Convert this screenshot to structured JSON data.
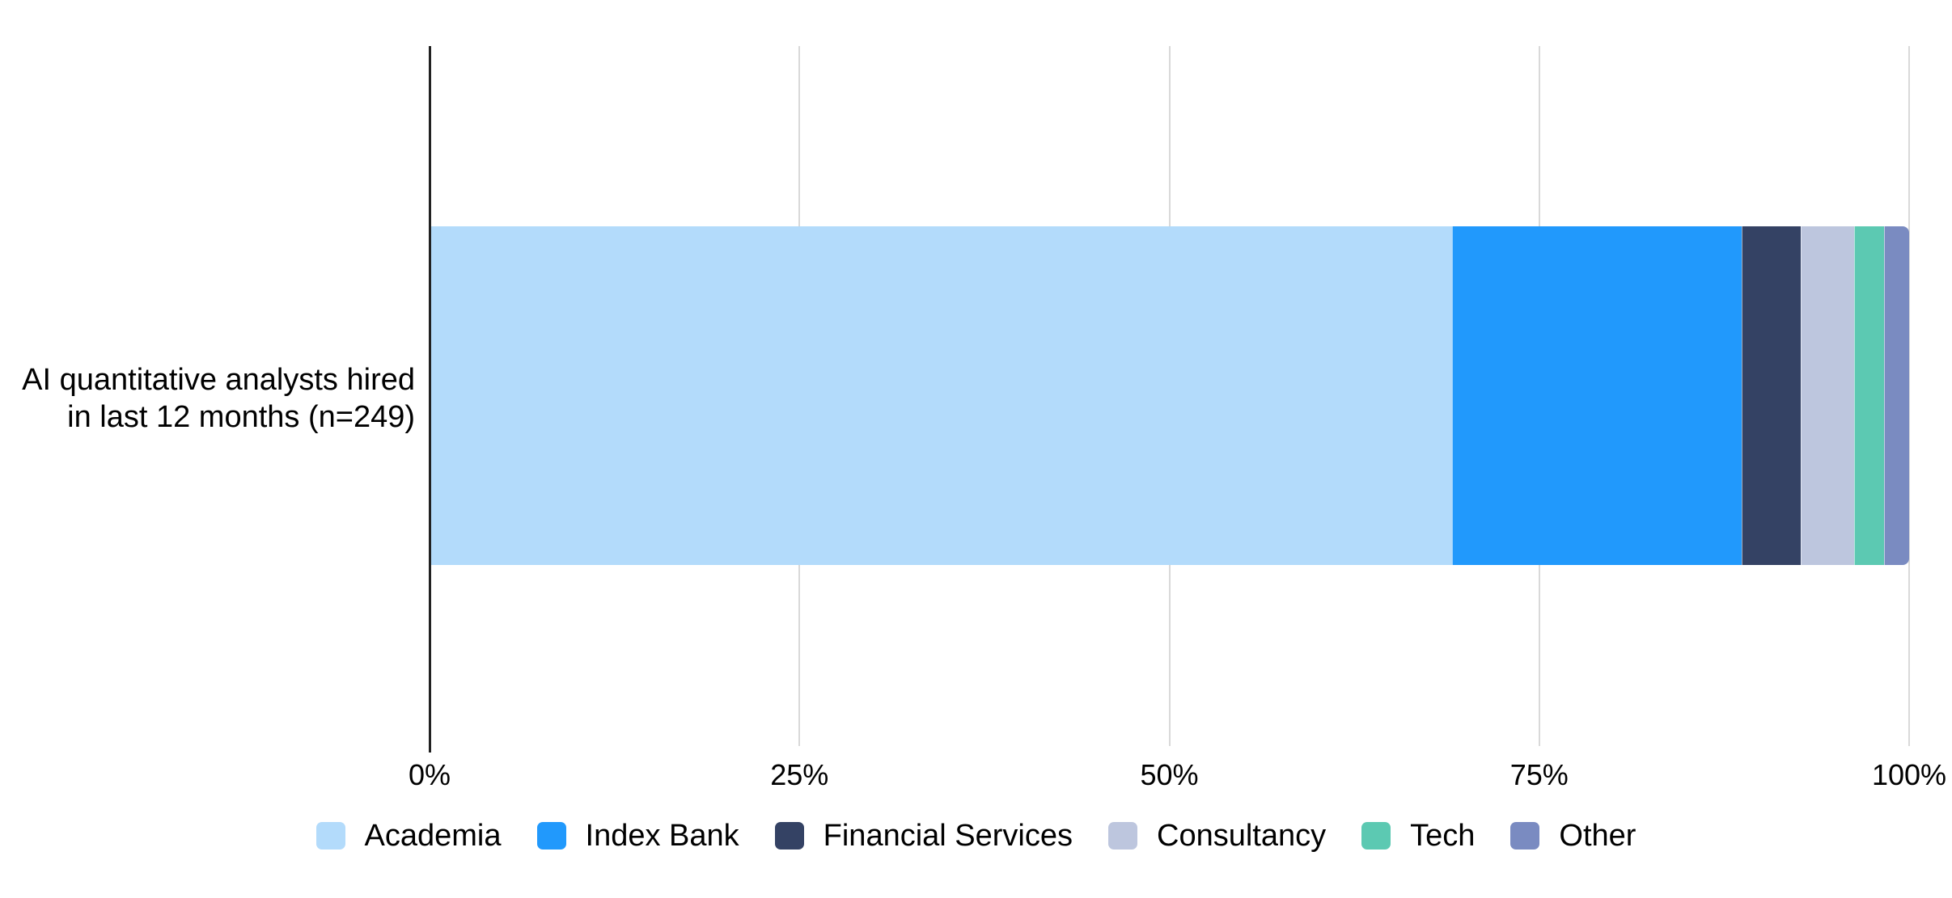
{
  "chart_data": {
    "type": "bar",
    "orientation": "horizontal",
    "stacked": true,
    "unit": "%",
    "title": "",
    "xlabel": "",
    "ylabel": "",
    "categories": [
      "AI quantitative analysts hired in last 12 months (n=249)"
    ],
    "series": [
      {
        "name": "Academia",
        "values": [
          69.1
        ],
        "color": "#B3DBFB"
      },
      {
        "name": "Index Bank",
        "values": [
          19.6
        ],
        "color": "#2199FC"
      },
      {
        "name": "Financial Services",
        "values": [
          4.0
        ],
        "color": "#344264"
      },
      {
        "name": "Consultancy",
        "values": [
          3.6
        ],
        "color": "#BDC6DE"
      },
      {
        "name": "Tech",
        "values": [
          2.0
        ],
        "color": "#5CC9B2"
      },
      {
        "name": "Other",
        "values": [
          1.7
        ],
        "color": "#7A8BC1"
      }
    ],
    "x_axis": {
      "tick_labels": [
        "0%",
        "25%",
        "50%",
        "75%",
        "100%"
      ],
      "tick_values": [
        0,
        25,
        50,
        75,
        100
      ],
      "range": [
        0,
        100
      ]
    },
    "grid": true,
    "legend_position": "bottom"
  },
  "category_label": {
    "line1": "AI quantitative analysts hired",
    "line2": "in last 12 months (n=249)"
  },
  "colors": {
    "background": "#FFFFFF",
    "gridline": "#D9D9D9",
    "axis_line": "#212121",
    "text": "#000000"
  }
}
